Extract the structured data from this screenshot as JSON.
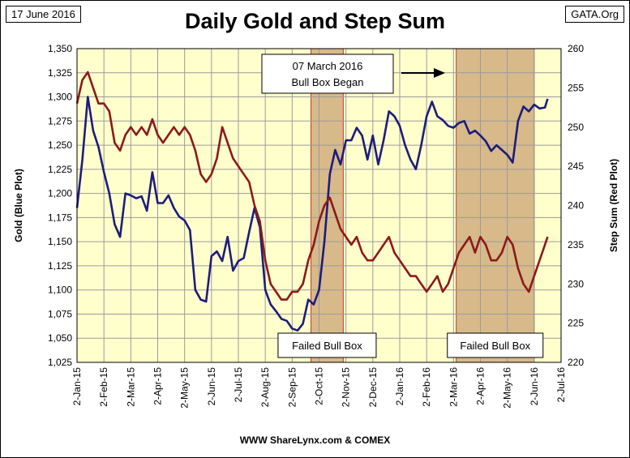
{
  "header": {
    "date_label": "17 June 2016",
    "source_label": "GATA.Org",
    "title": "Daily Gold and Step Sum",
    "credit": "WWW ShareLynx.com & COMEX"
  },
  "colors": {
    "plot_bg": "#FFFFCC",
    "grid": "#9B9B9B",
    "gold_line": "#1C1C7C",
    "step_line": "#8B1A1A",
    "box_fill": "#D7B98A",
    "box_edge": "#C0392B"
  },
  "chart_data": {
    "type": "line",
    "title": "Daily Gold and Step Sum",
    "x_tick_labels": [
      "2-Jan-15",
      "2-Feb-15",
      "2-Mar-15",
      "2-Apr-15",
      "2-May-15",
      "2-Jun-15",
      "2-Jul-15",
      "2-Aug-15",
      "2-Sep-15",
      "2-Oct-15",
      "2-Nov-15",
      "2-Dec-15",
      "2-Jan-16",
      "2-Feb-16",
      "2-Mar-16",
      "2-Apr-16",
      "2-May-16",
      "2-Jun-16",
      "2-Jul-16"
    ],
    "left_axis": {
      "label": "Gold   (Blue Plot)",
      "range": [
        1025,
        1350
      ],
      "ticks": [
        1025,
        1050,
        1075,
        1100,
        1125,
        1150,
        1175,
        1200,
        1225,
        1250,
        1275,
        1300,
        1325,
        1350
      ],
      "tick_labels": [
        "1,025",
        "1,050",
        "1,075",
        "1,100",
        "1,125",
        "1,150",
        "1,175",
        "1,200",
        "1,225",
        "1,250",
        "1,275",
        "1,300",
        "1,325",
        "1,350"
      ]
    },
    "right_axis": {
      "label": "Step Sum   (Red Plot)",
      "range": [
        220,
        260
      ],
      "ticks": [
        220,
        225,
        230,
        235,
        240,
        245,
        250,
        255,
        260
      ],
      "tick_labels": [
        "220",
        "225",
        "230",
        "235",
        "240",
        "245",
        "250",
        "255",
        "260"
      ]
    },
    "grid": true,
    "series": [
      {
        "name": "Gold (Blue Plot)",
        "axis": "left",
        "x": [
          0.0,
          0.2,
          0.4,
          0.6,
          0.8,
          1.0,
          1.2,
          1.4,
          1.6,
          1.8,
          2.0,
          2.2,
          2.4,
          2.6,
          2.8,
          3.0,
          3.2,
          3.4,
          3.6,
          3.8,
          4.0,
          4.2,
          4.4,
          4.6,
          4.8,
          5.0,
          5.2,
          5.4,
          5.6,
          5.8,
          6.0,
          6.2,
          6.4,
          6.6,
          6.8,
          7.0,
          7.2,
          7.4,
          7.6,
          7.8,
          8.0,
          8.2,
          8.4,
          8.6,
          8.8,
          9.0,
          9.2,
          9.4,
          9.6,
          9.8,
          10.0,
          10.2,
          10.4,
          10.6,
          10.8,
          11.0,
          11.2,
          11.4,
          11.6,
          11.8,
          12.0,
          12.2,
          12.4,
          12.6,
          12.8,
          13.0,
          13.2,
          13.4,
          13.6,
          13.8,
          14.0,
          14.2,
          14.4,
          14.6,
          14.8,
          15.0,
          15.2,
          15.4,
          15.6,
          15.8,
          16.0,
          16.2,
          16.4,
          16.6,
          16.8,
          17.0,
          17.2,
          17.4,
          17.5
        ],
        "values": [
          1185,
          1235,
          1300,
          1265,
          1248,
          1222,
          1200,
          1168,
          1155,
          1200,
          1198,
          1195,
          1197,
          1182,
          1222,
          1190,
          1190,
          1198,
          1185,
          1176,
          1172,
          1162,
          1100,
          1090,
          1088,
          1135,
          1140,
          1130,
          1155,
          1120,
          1130,
          1133,
          1160,
          1185,
          1165,
          1100,
          1085,
          1078,
          1070,
          1068,
          1060,
          1058,
          1065,
          1090,
          1085,
          1100,
          1150,
          1220,
          1245,
          1230,
          1255,
          1255,
          1268,
          1260,
          1235,
          1260,
          1230,
          1255,
          1285,
          1280,
          1270,
          1250,
          1235,
          1225,
          1250,
          1280,
          1295,
          1280,
          1276,
          1270,
          1268,
          1273,
          1275,
          1262,
          1265,
          1260,
          1254,
          1244,
          1250,
          1245,
          1240,
          1232,
          1275,
          1290,
          1285,
          1292,
          1288,
          1289,
          1298
        ]
      },
      {
        "name": "Step Sum (Red Plot)",
        "axis": "right",
        "x": [
          0.0,
          0.2,
          0.4,
          0.6,
          0.8,
          1.0,
          1.2,
          1.4,
          1.6,
          1.8,
          2.0,
          2.2,
          2.4,
          2.6,
          2.8,
          3.0,
          3.2,
          3.4,
          3.6,
          3.8,
          4.0,
          4.2,
          4.4,
          4.6,
          4.8,
          5.0,
          5.2,
          5.4,
          5.6,
          5.8,
          6.0,
          6.2,
          6.4,
          6.6,
          6.8,
          7.0,
          7.2,
          7.4,
          7.6,
          7.8,
          8.0,
          8.2,
          8.4,
          8.6,
          8.8,
          9.0,
          9.2,
          9.4,
          9.6,
          9.8,
          10.0,
          10.2,
          10.4,
          10.6,
          10.8,
          11.0,
          11.2,
          11.4,
          11.6,
          11.8,
          12.0,
          12.2,
          12.4,
          12.6,
          12.8,
          13.0,
          13.2,
          13.4,
          13.6,
          13.8,
          14.0,
          14.2,
          14.4,
          14.6,
          14.8,
          15.0,
          15.2,
          15.4,
          15.6,
          15.8,
          16.0,
          16.2,
          16.4,
          16.6,
          16.8,
          17.0,
          17.2,
          17.4,
          17.5
        ],
        "values": [
          253,
          256,
          257,
          255,
          253,
          253,
          252,
          248,
          247,
          249,
          250,
          249,
          250,
          249,
          251,
          249,
          248,
          249,
          250,
          249,
          250,
          249,
          247,
          244,
          243,
          244,
          246,
          250,
          248,
          246,
          245,
          244,
          243,
          240,
          238,
          233,
          230,
          229,
          228,
          228,
          229,
          229,
          230,
          233,
          235,
          238,
          240,
          241,
          239,
          237,
          236,
          235,
          236,
          234,
          233,
          233,
          234,
          235,
          236,
          234,
          233,
          232,
          231,
          231,
          230,
          229,
          230,
          231,
          229,
          230,
          232,
          234,
          235,
          236,
          234,
          236,
          235,
          233,
          233,
          234,
          236,
          235,
          232,
          230,
          229,
          231,
          233,
          235,
          236
        ]
      }
    ],
    "shaded_regions": [
      {
        "start": 8.7,
        "end": 9.9,
        "label": "Failed Bull Box"
      },
      {
        "start": 14.1,
        "end": 17.0,
        "label": "Failed Bull Box"
      }
    ],
    "annotation": {
      "line1": "07 March 2016",
      "line2": "Bull Box Began"
    }
  }
}
